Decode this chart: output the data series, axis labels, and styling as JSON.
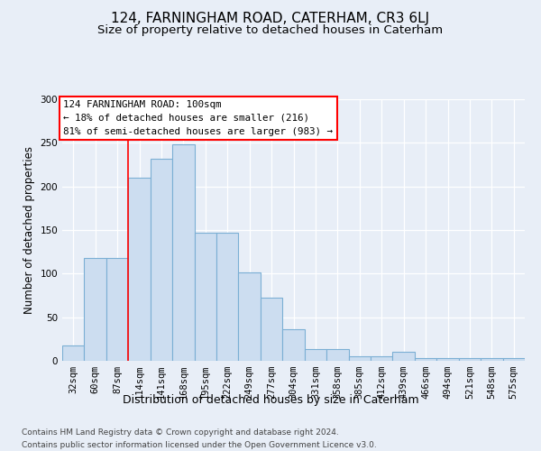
{
  "title": "124, FARNINGHAM ROAD, CATERHAM, CR3 6LJ",
  "subtitle": "Size of property relative to detached houses in Caterham",
  "xlabel": "Distribution of detached houses by size in Caterham",
  "ylabel": "Number of detached properties",
  "categories": [
    "32sqm",
    "60sqm",
    "87sqm",
    "114sqm",
    "141sqm",
    "168sqm",
    "195sqm",
    "222sqm",
    "249sqm",
    "277sqm",
    "304sqm",
    "331sqm",
    "358sqm",
    "385sqm",
    "412sqm",
    "439sqm",
    "466sqm",
    "494sqm",
    "521sqm",
    "548sqm",
    "575sqm"
  ],
  "values": [
    18,
    118,
    118,
    210,
    232,
    248,
    147,
    147,
    101,
    72,
    36,
    13,
    13,
    5,
    5,
    10,
    3,
    3,
    3,
    3,
    3
  ],
  "bar_color": "#ccddf0",
  "bar_edge_color": "#7bafd4",
  "red_line_x": 2.5,
  "annotation_text": "124 FARNINGHAM ROAD: 100sqm\n← 18% of detached houses are smaller (216)\n81% of semi-detached houses are larger (983) →",
  "ylim": [
    0,
    300
  ],
  "yticks": [
    0,
    50,
    100,
    150,
    200,
    250,
    300
  ],
  "bg_color": "#e8eef7",
  "grid_color": "#ffffff",
  "footer_line1": "Contains HM Land Registry data © Crown copyright and database right 2024.",
  "footer_line2": "Contains public sector information licensed under the Open Government Licence v3.0.",
  "title_fontsize": 11,
  "subtitle_fontsize": 9.5,
  "xlabel_fontsize": 9,
  "ylabel_fontsize": 8.5,
  "tick_fontsize": 7.5,
  "annotation_fontsize": 7.8,
  "footer_fontsize": 6.5
}
